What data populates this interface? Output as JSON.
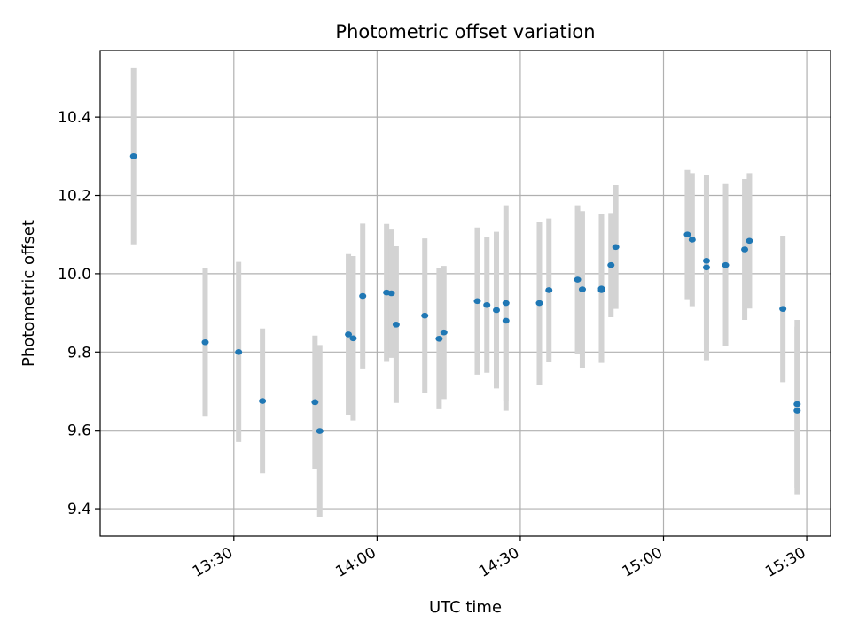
{
  "chart_data": {
    "type": "scatter",
    "title": "Photometric offset variation",
    "xlabel": "UTC time",
    "ylabel": "Photometric offset",
    "x_unit": "UTC time (HH:MM)",
    "xlim": [
      "13:02",
      "15:35"
    ],
    "ylim": [
      9.33,
      10.57
    ],
    "x_ticks": [
      "13:30",
      "14:00",
      "14:30",
      "15:00",
      "15:30"
    ],
    "y_ticks": [
      "9.4",
      "9.6",
      "9.8",
      "10.0",
      "10.2",
      "10.4"
    ],
    "grid": true,
    "colors": {
      "point": "#1f77b4",
      "errorbar": "#d3d3d3",
      "grid": "#b0b0b0"
    },
    "points": [
      {
        "x": "13:09",
        "y": 10.3,
        "yerr": 0.225
      },
      {
        "x": "13:24",
        "y": 9.825,
        "yerr": 0.19
      },
      {
        "x": "13:31",
        "y": 9.8,
        "yerr": 0.23
      },
      {
        "x": "13:36",
        "y": 9.675,
        "yerr": 0.185
      },
      {
        "x": "13:47",
        "y": 9.672,
        "yerr": 0.17
      },
      {
        "x": "13:48",
        "y": 9.598,
        "yerr": 0.22
      },
      {
        "x": "13:54",
        "y": 9.845,
        "yerr": 0.205
      },
      {
        "x": "13:55",
        "y": 9.835,
        "yerr": 0.21
      },
      {
        "x": "13:57",
        "y": 9.943,
        "yerr": 0.185
      },
      {
        "x": "14:02",
        "y": 9.952,
        "yerr": 0.175
      },
      {
        "x": "14:03",
        "y": 9.95,
        "yerr": 0.165
      },
      {
        "x": "14:04",
        "y": 9.87,
        "yerr": 0.2
      },
      {
        "x": "14:10",
        "y": 9.893,
        "yerr": 0.197
      },
      {
        "x": "14:13",
        "y": 9.834,
        "yerr": 0.18
      },
      {
        "x": "14:14",
        "y": 9.85,
        "yerr": 0.17
      },
      {
        "x": "14:21",
        "y": 9.93,
        "yerr": 0.188
      },
      {
        "x": "14:23",
        "y": 9.92,
        "yerr": 0.173
      },
      {
        "x": "14:25",
        "y": 9.907,
        "yerr": 0.2
      },
      {
        "x": "14:27",
        "y": 9.925,
        "yerr": 0.25
      },
      {
        "x": "14:27",
        "y": 9.88,
        "yerr": 0.23
      },
      {
        "x": "14:34",
        "y": 9.925,
        "yerr": 0.208
      },
      {
        "x": "14:36",
        "y": 9.958,
        "yerr": 0.183
      },
      {
        "x": "14:42",
        "y": 9.985,
        "yerr": 0.19
      },
      {
        "x": "14:43",
        "y": 9.96,
        "yerr": 0.2
      },
      {
        "x": "14:47",
        "y": 9.958,
        "yerr": 0.185
      },
      {
        "x": "14:47",
        "y": 9.962,
        "yerr": 0.19
      },
      {
        "x": "14:49",
        "y": 10.022,
        "yerr": 0.133
      },
      {
        "x": "14:50",
        "y": 10.068,
        "yerr": 0.158
      },
      {
        "x": "15:05",
        "y": 10.1,
        "yerr": 0.165
      },
      {
        "x": "15:06",
        "y": 10.087,
        "yerr": 0.17
      },
      {
        "x": "15:09",
        "y": 10.016,
        "yerr": 0.237
      },
      {
        "x": "15:09",
        "y": 10.033,
        "yerr": 0.215
      },
      {
        "x": "15:13",
        "y": 10.022,
        "yerr": 0.207
      },
      {
        "x": "15:17",
        "y": 10.062,
        "yerr": 0.18
      },
      {
        "x": "15:18",
        "y": 10.084,
        "yerr": 0.173
      },
      {
        "x": "15:25",
        "y": 9.91,
        "yerr": 0.187
      },
      {
        "x": "15:28",
        "y": 9.667,
        "yerr": 0.215
      },
      {
        "x": "15:28",
        "y": 9.65,
        "yerr": 0.215
      }
    ]
  }
}
